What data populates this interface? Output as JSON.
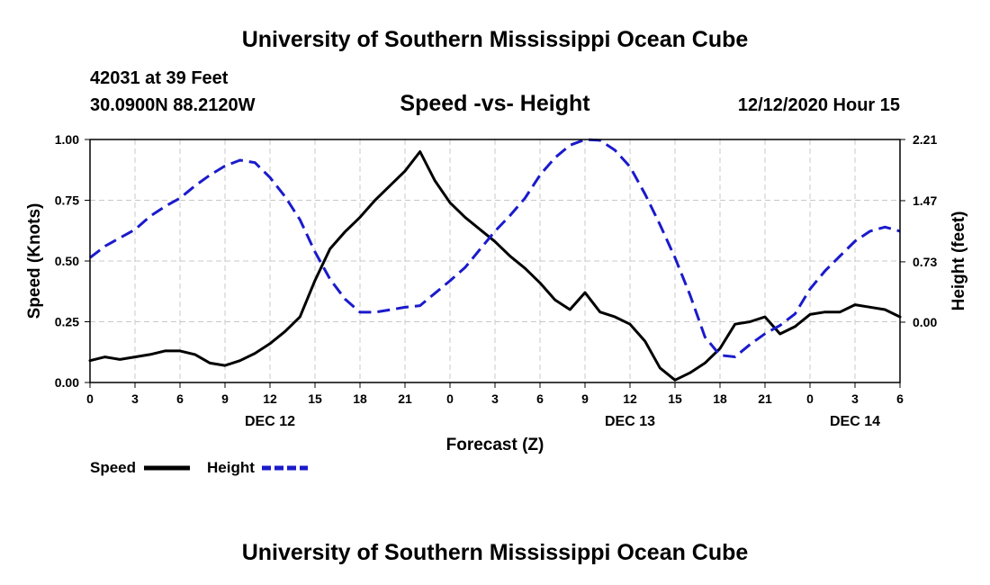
{
  "header": {
    "top_title": "University of Southern Mississippi Ocean Cube",
    "station": "42031 at 39 Feet",
    "coords": "30.0900N 88.2120W",
    "subtitle": "Speed -vs- Height",
    "datetime": "12/12/2020 Hour 15"
  },
  "footer": {
    "bottom_title": "University of Southern Mississippi Ocean Cube"
  },
  "chart_data": {
    "type": "line",
    "title": "Speed -vs- Height",
    "xlabel": "Forecast (Z)",
    "ylabel": "Speed (Knots)",
    "y2label": "Height (feet)",
    "x_unit": "hours from Dec 12 00Z",
    "xlim": [
      0,
      54
    ],
    "ylim": [
      0,
      1
    ],
    "y2lim": [
      -0.73,
      2.21
    ],
    "x_ticks": [
      0,
      3,
      6,
      9,
      12,
      15,
      18,
      21,
      24,
      27,
      30,
      33,
      36,
      39,
      42,
      45,
      48,
      51,
      54
    ],
    "x_tick_labels": [
      "0",
      "3",
      "6",
      "9",
      "12",
      "15",
      "18",
      "21",
      "0",
      "3",
      "6",
      "9",
      "12",
      "15",
      "18",
      "21",
      "0",
      "3",
      "6"
    ],
    "date_labels": [
      {
        "x": 12,
        "label": "DEC 12"
      },
      {
        "x": 36,
        "label": "DEC 13"
      },
      {
        "x": 51,
        "label": "DEC 14"
      }
    ],
    "y_ticks": [
      0,
      0.25,
      0.5,
      0.75,
      1.0
    ],
    "y_tick_labels": [
      "0.00",
      "0.25",
      "0.50",
      "0.75",
      "1.00"
    ],
    "y2_ticks": [
      0.0,
      0.73,
      1.47,
      2.21
    ],
    "y2_tick_labels": [
      "0.00",
      "0.73",
      "1.47",
      "2.21"
    ],
    "legend": "bottom-left",
    "grid": true,
    "series": [
      {
        "name": "Speed",
        "axis": "left",
        "color": "#000000",
        "dash": "solid",
        "x": [
          0,
          1,
          2,
          3,
          4,
          5,
          6,
          7,
          8,
          9,
          10,
          11,
          12,
          13,
          14,
          15,
          16,
          17,
          18,
          19,
          20,
          21,
          22,
          23,
          24,
          25,
          26,
          27,
          28,
          29,
          30,
          31,
          32,
          33,
          34,
          35,
          36,
          37,
          38,
          39,
          40,
          41,
          42,
          43,
          44,
          45,
          46,
          47,
          48,
          49,
          50,
          51,
          52,
          53,
          54
        ],
        "values": [
          0.09,
          0.105,
          0.095,
          0.105,
          0.115,
          0.13,
          0.13,
          0.115,
          0.08,
          0.07,
          0.09,
          0.12,
          0.16,
          0.21,
          0.27,
          0.42,
          0.55,
          0.62,
          0.68,
          0.75,
          0.81,
          0.87,
          0.95,
          0.83,
          0.74,
          0.68,
          0.63,
          0.58,
          0.52,
          0.47,
          0.41,
          0.34,
          0.3,
          0.37,
          0.29,
          0.27,
          0.24,
          0.17,
          0.06,
          0.01,
          0.04,
          0.08,
          0.14,
          0.24,
          0.25,
          0.27,
          0.2,
          0.23,
          0.28,
          0.29,
          0.29,
          0.32,
          0.31,
          0.3,
          0.27
        ]
      },
      {
        "name": "Height",
        "axis": "right",
        "color": "#1a1acc",
        "dash": "dashed",
        "x": [
          0,
          1,
          2,
          3,
          4,
          5,
          6,
          7,
          8,
          9,
          10,
          11,
          12,
          13,
          14,
          15,
          16,
          17,
          18,
          19,
          20,
          21,
          22,
          23,
          24,
          25,
          26,
          27,
          28,
          29,
          30,
          31,
          32,
          33,
          34,
          35,
          36,
          37,
          38,
          39,
          40,
          41,
          42,
          43,
          44,
          45,
          46,
          47,
          48,
          49,
          50,
          51,
          52,
          53,
          54
        ],
        "values": [
          0.78,
          0.92,
          1.02,
          1.12,
          1.28,
          1.4,
          1.5,
          1.65,
          1.78,
          1.89,
          1.96,
          1.93,
          1.75,
          1.52,
          1.24,
          0.85,
          0.52,
          0.28,
          0.12,
          0.12,
          0.15,
          0.18,
          0.2,
          0.35,
          0.5,
          0.66,
          0.88,
          1.1,
          1.29,
          1.5,
          1.78,
          1.99,
          2.14,
          2.21,
          2.2,
          2.08,
          1.88,
          1.55,
          1.18,
          0.78,
          0.33,
          -0.18,
          -0.4,
          -0.42,
          -0.27,
          -0.14,
          -0.04,
          0.1,
          0.4,
          0.62,
          0.8,
          0.98,
          1.1,
          1.15,
          1.1
        ]
      }
    ]
  }
}
